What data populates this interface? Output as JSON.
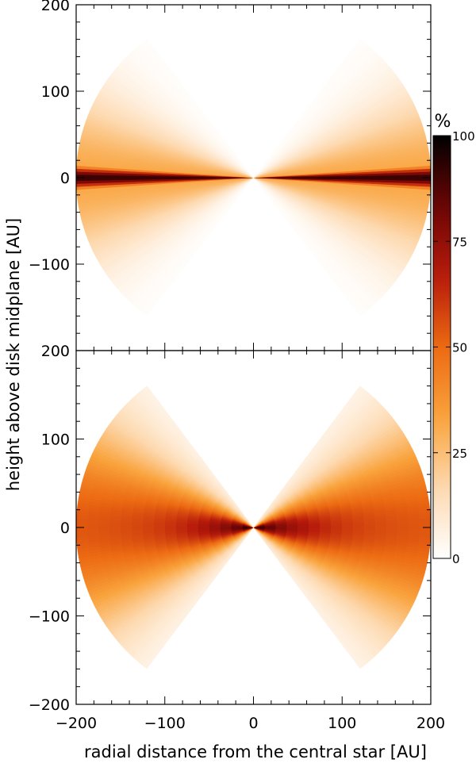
{
  "chart_data": [
    {
      "type": "heatmap",
      "panel": "top",
      "xlim": [
        -200,
        200
      ],
      "ylim": [
        -200,
        200
      ],
      "xticks": [
        -200,
        -100,
        0,
        100,
        200
      ],
      "yticks": [
        -200,
        -100,
        0,
        100,
        200
      ],
      "xticklabels": [],
      "yticklabels": [
        "−200",
        "−100",
        "0",
        "100",
        "200"
      ],
      "description_of_field": {
        "shape": "double cone (bowtie) truncated at spherical radius ~200 AU, opening half-angle ~53° from midplane",
        "peak_percent_at_midplane": 92,
        "midplane_angular_width_deg": 4,
        "envelope_angular_width_deg": 28,
        "envelope_percent": 32
      }
    },
    {
      "type": "heatmap",
      "panel": "bottom",
      "xlim": [
        -200,
        200
      ],
      "ylim": [
        -200,
        200
      ],
      "xticks": [
        -200,
        -100,
        0,
        100,
        200
      ],
      "yticks": [
        -200,
        -100,
        0,
        100,
        200
      ],
      "xticklabels": [
        "−200",
        "−100",
        "0",
        "100",
        "200"
      ],
      "yticklabels": [
        "−200",
        "−100",
        "0",
        "100",
        "200"
      ],
      "description_of_field": {
        "shape": "double cone (bowtie) truncated at spherical radius ~200 AU, opening half-angle ~53° from midplane",
        "peak_percent_near_center": 95,
        "midplane_percent_outer": 52,
        "angular_falloff_width_deg": 35
      }
    }
  ],
  "labels": {
    "xlabel": "radial distance from the central star [AU]",
    "ylabel": "height above disk midplane [AU]"
  },
  "colorbar": {
    "label": "%",
    "range": [
      0,
      100
    ],
    "ticks": [
      0,
      25,
      50,
      75,
      100
    ],
    "ticklabels": [
      "0",
      "25",
      "50",
      "75",
      "100"
    ],
    "colors": [
      "#ffffff",
      "#fdd9b0",
      "#f9a33c",
      "#ec6a12",
      "#b71a0b",
      "#6b0505",
      "#000000"
    ]
  }
}
